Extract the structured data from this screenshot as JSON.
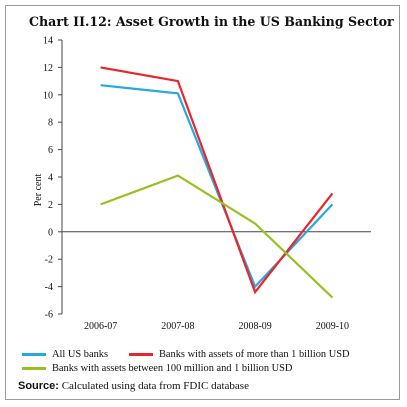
{
  "chart_data": {
    "type": "line",
    "title": "Chart II.12: Asset Growth in the US Banking Sector",
    "ylabel": "Per cent",
    "xlabel": "",
    "categories": [
      "2006-07",
      "2007-08",
      "2008-09",
      "2009-10"
    ],
    "ylim": [
      -6,
      14
    ],
    "yticks": [
      "14",
      "12",
      "10",
      "8",
      "6",
      "4",
      "2",
      "0",
      "-2",
      "-4",
      "-6"
    ],
    "series": [
      {
        "name": "All US banks",
        "color": "#29a8e0",
        "values": [
          10.7,
          10.1,
          -4.0,
          2.0
        ]
      },
      {
        "name": "Banks with assets of more than 1 billion USD",
        "color": "#e8262b",
        "values": [
          12.0,
          11.0,
          -4.4,
          2.8
        ]
      },
      {
        "name": "Banks with assets between 100 million and 1 billion USD",
        "color": "#96c11f",
        "values": [
          2.0,
          4.1,
          0.6,
          -4.8
        ]
      }
    ],
    "grid": false,
    "legend": "bottom"
  },
  "source": {
    "label": "Source:",
    "text": "Calculated using data from FDIC database"
  }
}
